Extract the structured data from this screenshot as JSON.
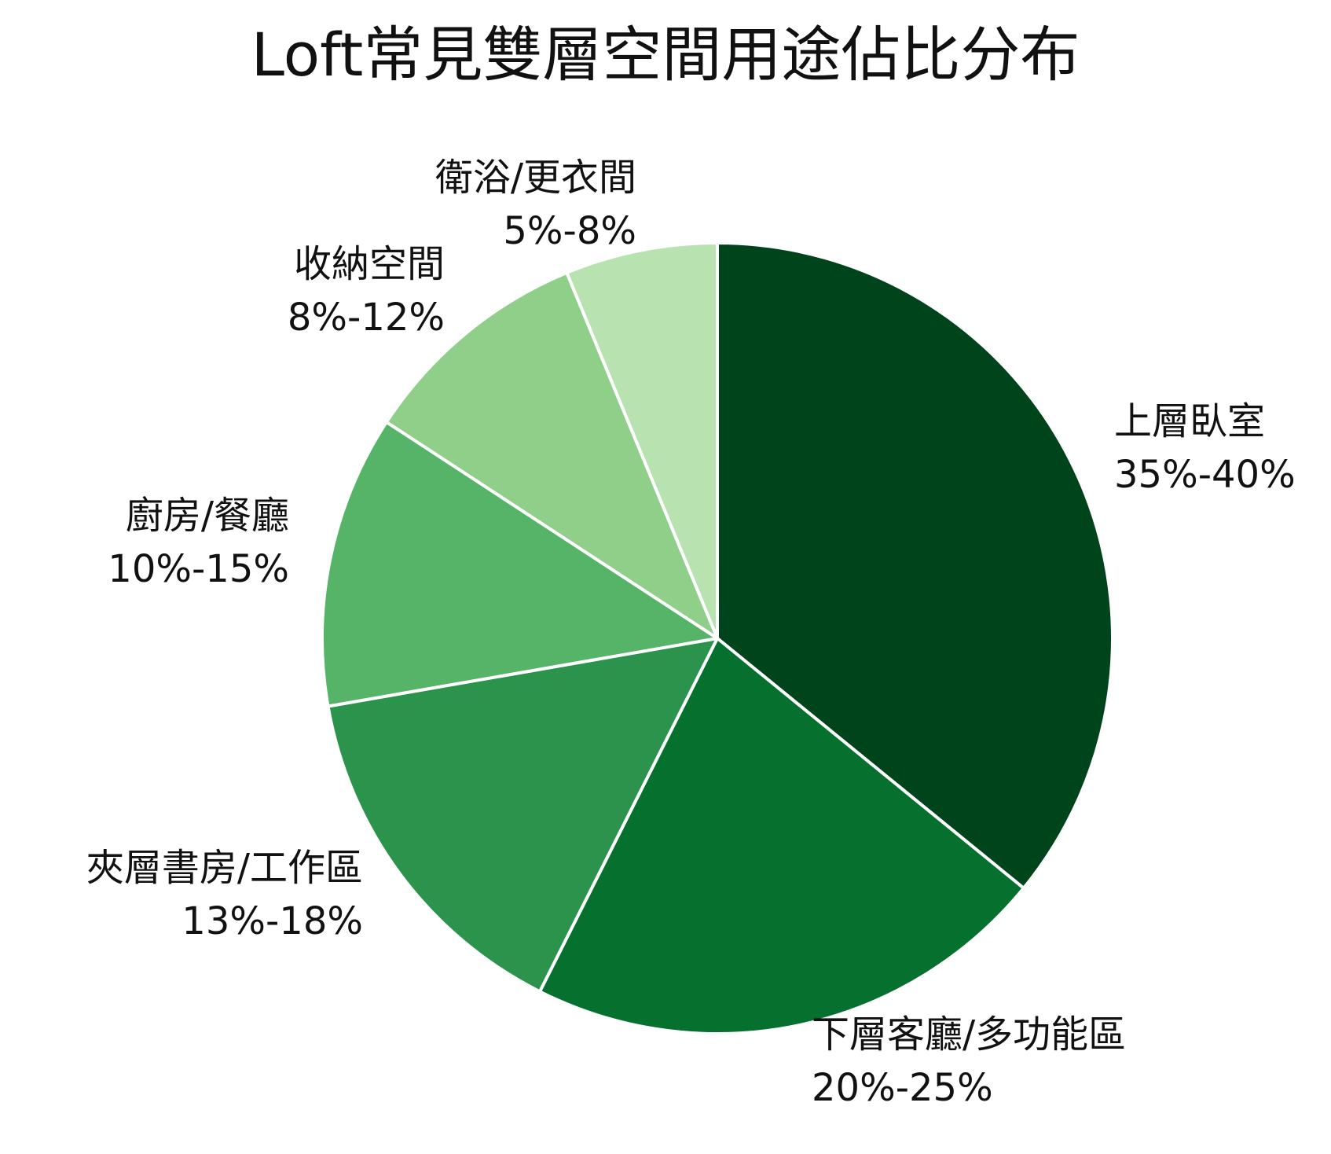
{
  "chart_data": {
    "type": "pie",
    "title": "Loft常見雙層空間用途佔比分布",
    "start_angle_deg": 90,
    "direction": "clockwise",
    "legend": "none",
    "slices": [
      {
        "label": "上層臥室",
        "range": "35%-40%",
        "value": 37.5,
        "color": "#00441b"
      },
      {
        "label": "下層客廳/多功能區",
        "range": "20%-25%",
        "value": 22.5,
        "color": "#06702f"
      },
      {
        "label": "夾層書房/工作區",
        "range": "13%-18%",
        "value": 15.5,
        "color": "#2c934c"
      },
      {
        "label": "廚房/餐廳",
        "range": "10%-15%",
        "value": 12.5,
        "color": "#56b469"
      },
      {
        "label": "收納空間",
        "range": "8%-12%",
        "value": 10,
        "color": "#8fcf8a"
      },
      {
        "label": "衛浴/更衣間",
        "range": "5%-8%",
        "value": 6.5,
        "color": "#b9e2b1"
      }
    ]
  }
}
